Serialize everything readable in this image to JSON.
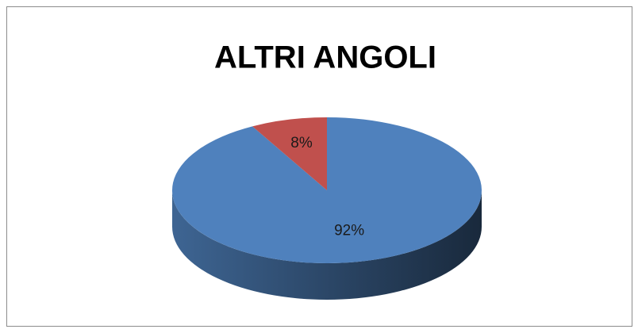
{
  "chart_data": {
    "type": "pie",
    "title": "ALTRI ANGOLI",
    "values": [
      92,
      8
    ],
    "value_labels": [
      "92%",
      "8%"
    ],
    "colors": [
      "#4f81bd",
      "#c0504d"
    ]
  }
}
